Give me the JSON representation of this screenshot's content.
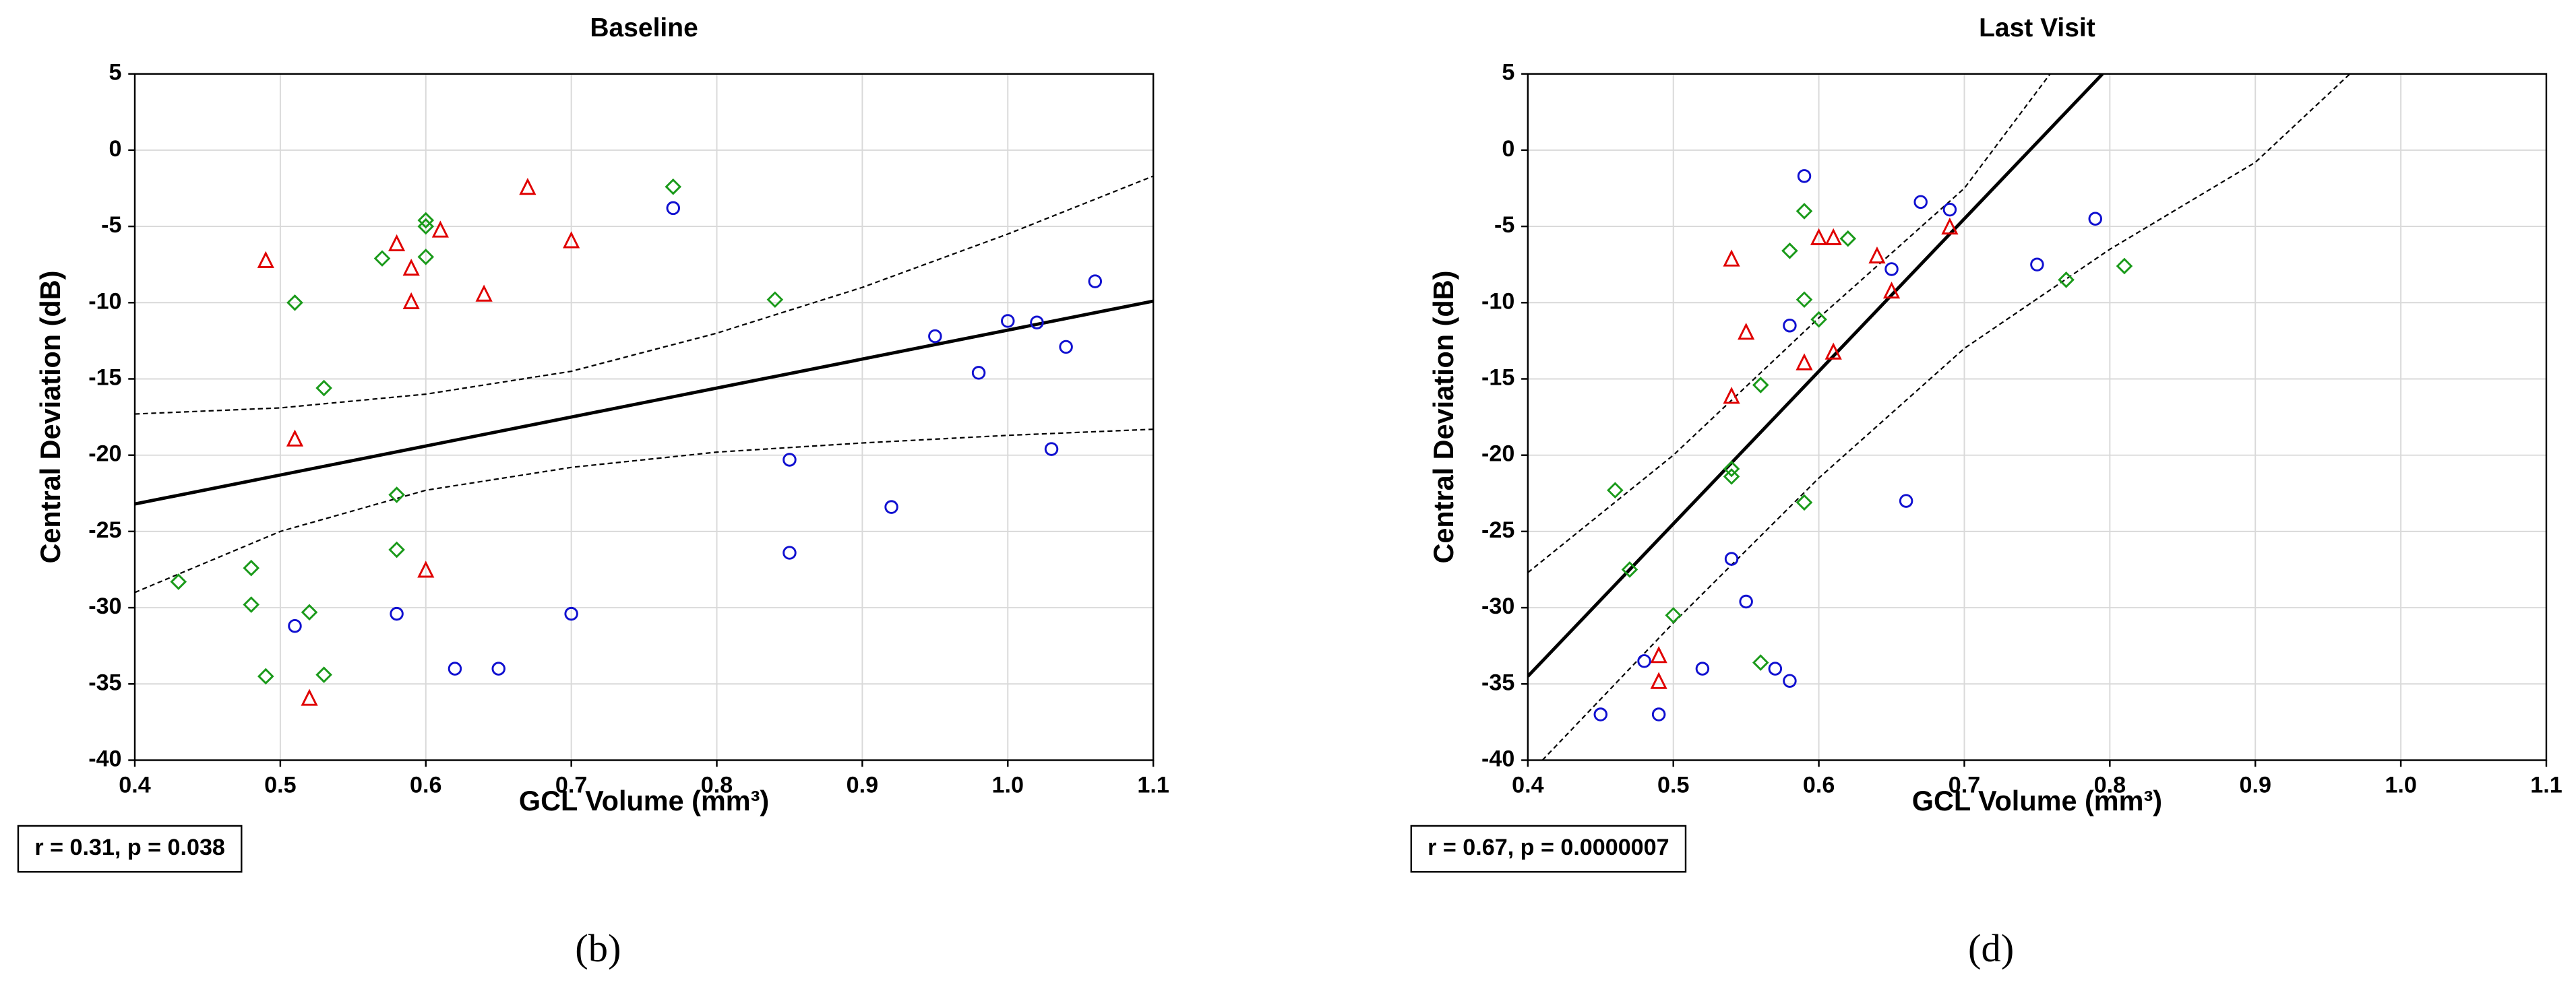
{
  "chart_data": [
    {
      "type": "scatter",
      "title": "Baseline",
      "x_label": "GCL Volume (mm³)",
      "y_label": "Central Deviation (dB)",
      "annotation": "r = 0.31, p = 0.038",
      "panel_label": "(b)",
      "xlim": [
        0.4,
        1.1
      ],
      "ylim": [
        -40,
        5
      ],
      "xticks": [
        0.4,
        0.5,
        0.6,
        0.7,
        0.8,
        0.9,
        {
          "value": 1,
          "label": "1.0"
        },
        1.1
      ],
      "yticks": [
        5,
        0,
        -5,
        -10,
        -15,
        -20,
        -25,
        -30,
        -35,
        -40
      ],
      "grid": true,
      "series": [
        {
          "marker": "triangle",
          "color": "#e00000",
          "x": [
            0.49,
            0.51,
            0.52,
            0.58,
            0.59,
            0.59,
            0.6,
            0.61,
            0.64,
            0.67,
            0.7
          ],
          "y": [
            -7.3,
            -19,
            -36,
            -6.2,
            -7.8,
            -10,
            -27.6,
            -5.3,
            -9.5,
            -2.5,
            -6
          ]
        },
        {
          "marker": "diamond",
          "color": "#1a9a1a",
          "x": [
            0.43,
            0.48,
            0.48,
            0.49,
            0.51,
            0.52,
            0.53,
            0.53,
            0.57,
            0.58,
            0.58,
            0.6,
            0.6,
            0.6,
            0.77,
            0.84
          ],
          "y": [
            -28.3,
            -27.4,
            -29.8,
            -34.5,
            -10,
            -30.3,
            -34.4,
            -15.6,
            -7.1,
            -22.6,
            -26.2,
            -4.6,
            -5,
            -7,
            -2.4,
            -9.8
          ]
        },
        {
          "marker": "circle",
          "color": "#1010d0",
          "x": [
            0.51,
            0.58,
            0.62,
            0.65,
            0.7,
            0.77,
            0.85,
            0.85,
            0.92,
            0.95,
            0.98,
            1.0,
            1.02,
            1.03,
            1.04,
            1.06
          ],
          "y": [
            -31.2,
            -30.4,
            -34,
            -34,
            -30.4,
            -3.8,
            -20.3,
            -26.4,
            -23.4,
            -12.2,
            -14.6,
            -11.2,
            -11.3,
            -19.6,
            -12.9,
            -8.6
          ]
        }
      ],
      "fit": {
        "x": [
          0.4,
          1.1
        ],
        "y": [
          -23.2,
          -9.9
        ]
      },
      "band_upper": {
        "x": [
          0.4,
          0.5,
          0.6,
          0.7,
          0.8,
          0.9,
          1.0,
          1.1
        ],
        "y": [
          -17.3,
          -16.9,
          -16,
          -14.5,
          -12,
          -9,
          -5.5,
          -1.7
        ]
      },
      "band_lower": {
        "x": [
          0.4,
          0.5,
          0.6,
          0.7,
          0.8,
          0.9,
          1.0,
          1.1
        ],
        "y": [
          -29,
          -25,
          -22.3,
          -20.8,
          -19.8,
          -19.2,
          -18.7,
          -18.3
        ]
      }
    },
    {
      "type": "scatter",
      "title": "Last Visit",
      "x_label": "GCL Volume (mm³)",
      "y_label": "Central Deviation (dB)",
      "annotation": "r = 0.67, p = 0.0000007",
      "panel_label": "(d)",
      "xlim": [
        0.4,
        1.1
      ],
      "ylim": [
        -40,
        5
      ],
      "xticks": [
        0.4,
        0.5,
        0.6,
        0.7,
        0.8,
        0.9,
        {
          "value": 1,
          "label": "1.0"
        },
        1.1
      ],
      "yticks": [
        5,
        0,
        -5,
        -10,
        -15,
        -20,
        -25,
        -30,
        -35,
        -40
      ],
      "grid": true,
      "series": [
        {
          "marker": "triangle",
          "color": "#e00000",
          "x": [
            0.49,
            0.49,
            0.54,
            0.54,
            0.55,
            0.59,
            0.6,
            0.61,
            0.61,
            0.64,
            0.65,
            0.69
          ],
          "y": [
            -33.2,
            -34.9,
            -7.2,
            -16.2,
            -12,
            -14,
            -5.8,
            -5.8,
            -13.3,
            -7,
            -9.3,
            -5.1
          ]
        },
        {
          "marker": "diamond",
          "color": "#1a9a1a",
          "x": [
            0.46,
            0.47,
            0.5,
            0.54,
            0.54,
            0.56,
            0.56,
            0.58,
            0.59,
            0.59,
            0.59,
            0.6,
            0.62,
            0.77,
            0.81
          ],
          "y": [
            -22.3,
            -27.5,
            -30.5,
            -20.9,
            -21.4,
            -15.4,
            -33.6,
            -6.6,
            -4,
            -9.8,
            -23.1,
            -11.1,
            -5.8,
            -8.5,
            -7.6
          ]
        },
        {
          "marker": "circle",
          "color": "#1010d0",
          "x": [
            0.45,
            0.48,
            0.49,
            0.52,
            0.54,
            0.55,
            0.57,
            0.58,
            0.58,
            0.59,
            0.65,
            0.66,
            0.67,
            0.69,
            0.75,
            0.79
          ],
          "y": [
            -37,
            -33.5,
            -37,
            -34,
            -26.8,
            -29.6,
            -34,
            -34.8,
            -11.5,
            -1.7,
            -7.8,
            -23,
            -3.4,
            -3.9,
            -7.5,
            -4.5
          ]
        }
      ],
      "fit": {
        "x": [
          0.4,
          0.795
        ],
        "y": [
          -34.5,
          5
        ]
      },
      "band_upper": {
        "x": [
          0.4,
          0.5,
          0.6,
          0.7,
          0.759
        ],
        "y": [
          -27.7,
          -20,
          -11,
          -2.5,
          5
        ]
      },
      "band_lower": {
        "x": [
          0.41,
          0.5,
          0.6,
          0.7,
          0.8,
          0.9,
          0.965
        ],
        "y": [
          -40,
          -31,
          -21.5,
          -13,
          -6.5,
          -0.8,
          5
        ]
      }
    }
  ]
}
